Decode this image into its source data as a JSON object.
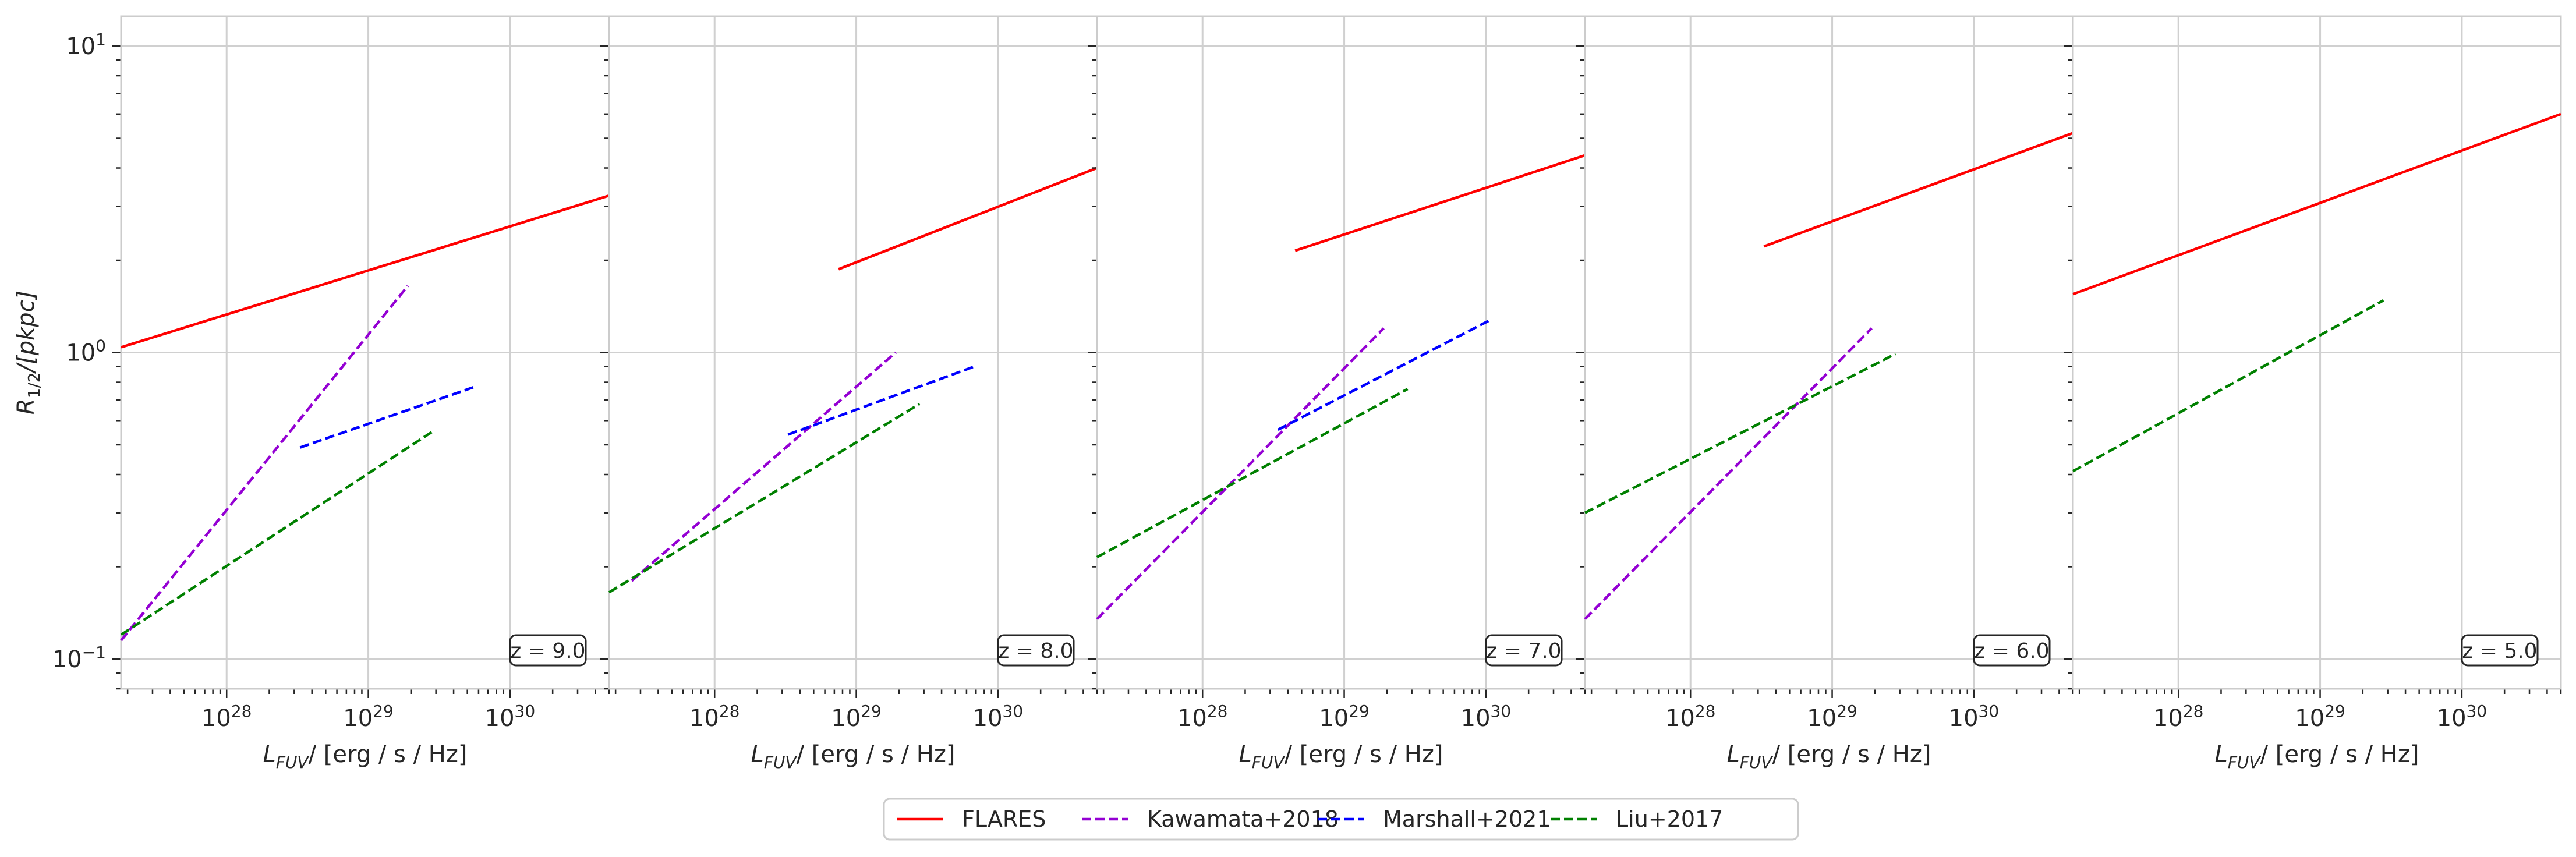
{
  "chart_data": {
    "type": "line",
    "x_scale": "log",
    "y_scale": "log",
    "xlim": [
      1.8e+27,
      5e+30
    ],
    "ylim": [
      0.08,
      12.5
    ],
    "grid": true,
    "y_ticks": [
      {
        "value": 0.1,
        "base": "10",
        "exp": "−1"
      },
      {
        "value": 1,
        "base": "10",
        "exp": "0"
      },
      {
        "value": 10,
        "base": "10",
        "exp": "1"
      }
    ],
    "x_ticks": [
      {
        "value": 1e+28,
        "base": "10",
        "exp": "28"
      },
      {
        "value": 1e+29,
        "base": "10",
        "exp": "29"
      },
      {
        "value": 1e+30,
        "base": "10",
        "exp": "30"
      }
    ],
    "ylabel": {
      "main": "R",
      "sub": "1/2",
      "rest": "/[pkpc]"
    },
    "xlabel": {
      "main": "L",
      "sub": "FUV",
      "rest": "/ [erg / s / Hz]"
    },
    "legend": {
      "placement": "bottom-center",
      "entries": [
        {
          "label": "FLARES",
          "color": "#ff0000",
          "dashed": false
        },
        {
          "label": "Kawamata+2018",
          "color": "#9400d3",
          "dashed": true
        },
        {
          "label": "Marshall+2021",
          "color": "#0000ff",
          "dashed": true
        },
        {
          "label": "Liu+2017",
          "color": "#008000",
          "dashed": true
        }
      ]
    },
    "panels": [
      {
        "label": "z = 9.0",
        "series": [
          {
            "name": "FLARES",
            "color": "#ff0000",
            "dashed": false,
            "points": [
              [
                1.8e+27,
                1.04
              ],
              [
                5e+30,
                3.25
              ]
            ]
          },
          {
            "name": "Kawamata+2018",
            "color": "#9400d3",
            "dashed": true,
            "points": [
              [
                1.8e+27,
                0.115
              ],
              [
                1.9e+29,
                1.65
              ]
            ]
          },
          {
            "name": "Marshall+2021",
            "color": "#0000ff",
            "dashed": true,
            "points": [
              [
                3.3e+28,
                0.49
              ],
              [
                5.5e+29,
                0.77
              ]
            ]
          },
          {
            "name": "Liu+2017",
            "color": "#008000",
            "dashed": true,
            "points": [
              [
                1.8e+27,
                0.12
              ],
              [
                2.8e+29,
                0.55
              ]
            ]
          }
        ]
      },
      {
        "label": "z = 8.0",
        "series": [
          {
            "name": "FLARES",
            "color": "#ff0000",
            "dashed": false,
            "points": [
              [
                7.5e+28,
                1.87
              ],
              [
                5e+30,
                4.0
              ]
            ]
          },
          {
            "name": "Kawamata+2018",
            "color": "#9400d3",
            "dashed": true,
            "points": [
              [
                2.6e+27,
                0.18
              ],
              [
                1.9e+29,
                1.0
              ]
            ]
          },
          {
            "name": "Marshall+2021",
            "color": "#0000ff",
            "dashed": true,
            "points": [
              [
                3.3e+28,
                0.54
              ],
              [
                6.8e+29,
                0.9
              ]
            ]
          },
          {
            "name": "Liu+2017",
            "color": "#008000",
            "dashed": true,
            "points": [
              [
                1.8e+27,
                0.165
              ],
              [
                2.8e+29,
                0.68
              ]
            ]
          }
        ]
      },
      {
        "label": "z = 7.0",
        "series": [
          {
            "name": "FLARES",
            "color": "#ff0000",
            "dashed": false,
            "points": [
              [
                4.5e+28,
                2.15
              ],
              [
                5e+30,
                4.4
              ]
            ]
          },
          {
            "name": "Kawamata+2018",
            "color": "#9400d3",
            "dashed": true,
            "points": [
              [
                1.8e+27,
                0.135
              ],
              [
                1.9e+29,
                1.2
              ]
            ]
          },
          {
            "name": "Marshall+2021",
            "color": "#0000ff",
            "dashed": true,
            "points": [
              [
                3.4e+28,
                0.56
              ],
              [
                1.05e+30,
                1.27
              ]
            ]
          },
          {
            "name": "Liu+2017",
            "color": "#008000",
            "dashed": true,
            "points": [
              [
                1.8e+27,
                0.215
              ],
              [
                2.8e+29,
                0.76
              ]
            ]
          }
        ]
      },
      {
        "label": "z = 6.0",
        "series": [
          {
            "name": "FLARES",
            "color": "#ff0000",
            "dashed": false,
            "points": [
              [
                3.3e+28,
                2.22
              ],
              [
                5e+30,
                5.2
              ]
            ]
          },
          {
            "name": "Kawamata+2018",
            "color": "#9400d3",
            "dashed": true,
            "points": [
              [
                1.8e+27,
                0.135
              ],
              [
                1.9e+29,
                1.2
              ]
            ]
          },
          {
            "name": "Liu+2017",
            "color": "#008000",
            "dashed": true,
            "points": [
              [
                1.8e+27,
                0.3
              ],
              [
                2.8e+29,
                0.99
              ]
            ]
          }
        ]
      },
      {
        "label": "z = 5.0",
        "series": [
          {
            "name": "FLARES",
            "color": "#ff0000",
            "dashed": false,
            "points": [
              [
                1.8e+27,
                1.55
              ],
              [
                5e+30,
                6.0
              ]
            ]
          },
          {
            "name": "Liu+2017",
            "color": "#008000",
            "dashed": true,
            "points": [
              [
                1.8e+27,
                0.41
              ],
              [
                2.8e+29,
                1.48
              ]
            ]
          }
        ]
      }
    ]
  }
}
